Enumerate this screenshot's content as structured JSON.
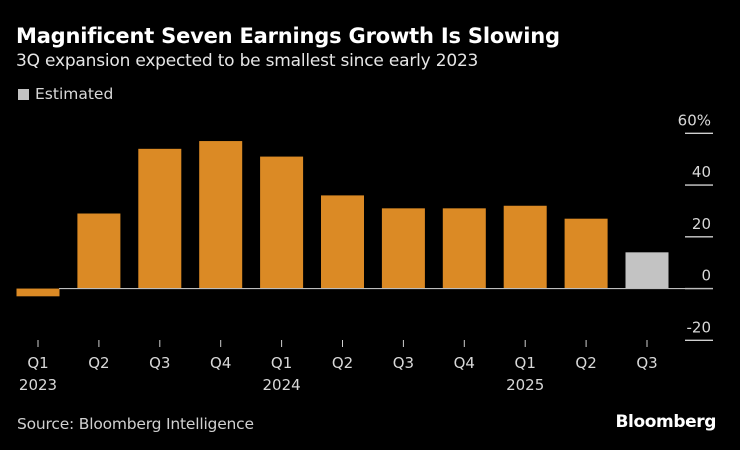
{
  "chart_data": {
    "type": "bar",
    "title": "Magnificent Seven Earnings Growth Is Slowing",
    "subtitle": "3Q expansion expected to be smallest since early 2023",
    "categories": [
      "Q1",
      "Q2",
      "Q3",
      "Q4",
      "Q1",
      "Q2",
      "Q3",
      "Q4",
      "Q1",
      "Q2",
      "Q3"
    ],
    "year_labels": [
      "2023",
      "",
      "",
      "",
      "2024",
      "",
      "",
      "",
      "2025",
      "",
      ""
    ],
    "values": [
      -3,
      29,
      54,
      57,
      51,
      36,
      31,
      31,
      32,
      27,
      14
    ],
    "estimated": [
      false,
      false,
      false,
      false,
      false,
      false,
      false,
      false,
      false,
      false,
      true
    ],
    "legend": [
      {
        "label": "Estimated",
        "color": "#c3c3c3"
      }
    ],
    "legend_position": "top-left",
    "ylim": [
      -20,
      60
    ],
    "yticks": [
      60,
      40,
      20,
      0,
      -20
    ],
    "ytick_labels": [
      "60%",
      "40",
      "20",
      "0",
      "-20"
    ],
    "y_axis_side": "right",
    "grid": false,
    "colors": {
      "actual": "#db8a25",
      "estimated": "#c3c3c3",
      "background": "#000000"
    },
    "source": "Source: Bloomberg Intelligence",
    "logo": "Bloomberg"
  }
}
